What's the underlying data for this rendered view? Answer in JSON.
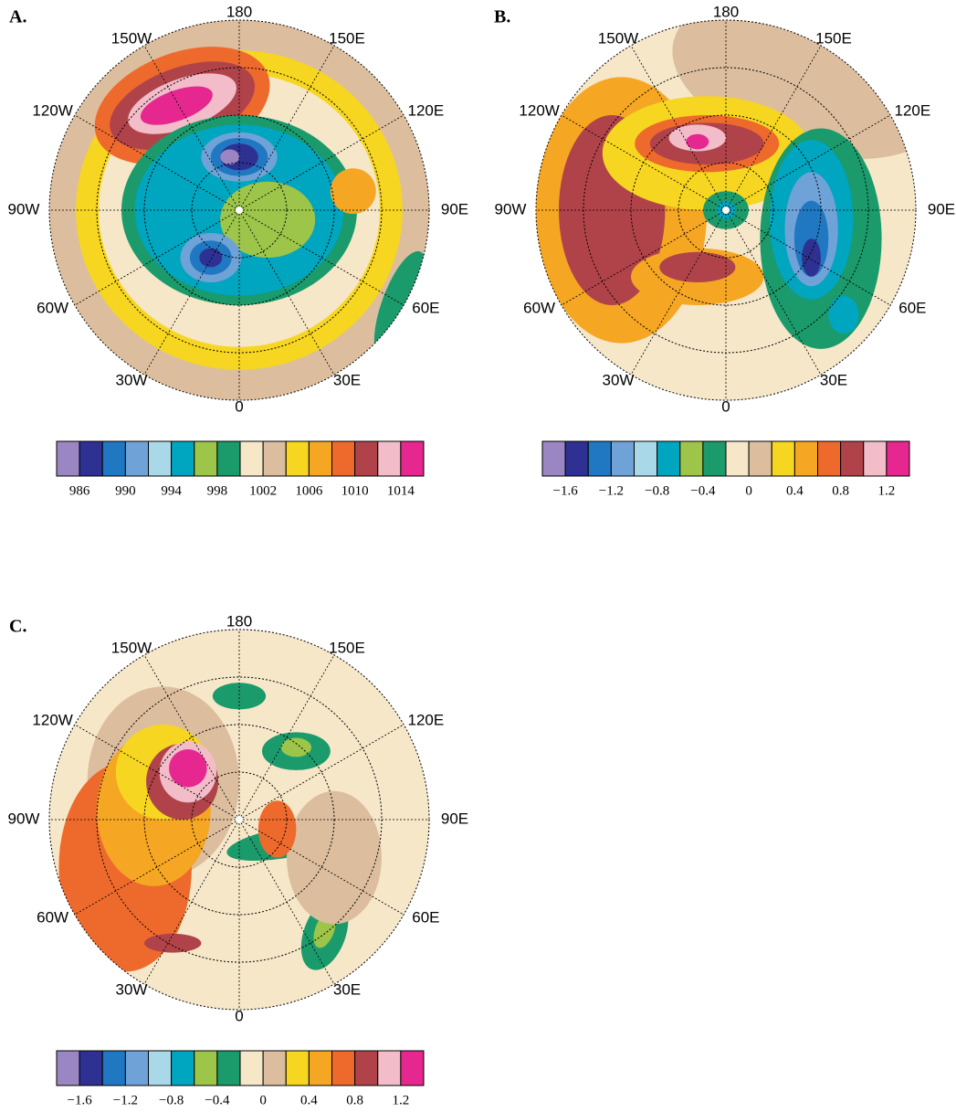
{
  "panels": [
    {
      "label": "A.",
      "lon_labels": [
        "180",
        "150E",
        "120E",
        "90E",
        "60E",
        "30E",
        "0",
        "30W",
        "60W",
        "90W",
        "120W",
        "150W"
      ],
      "colorbar": {
        "colors": [
          "#9a86c2",
          "#2e3192",
          "#1f78c1",
          "#6fa3d8",
          "#a9d9e9",
          "#00a5bf",
          "#9cc54a",
          "#1b9a6b",
          "#f6e7c9",
          "#dcbe9e",
          "#f6d620",
          "#f5a623",
          "#ee6a2c",
          "#b0434a",
          "#f2bdc8",
          "#e6278f"
        ],
        "clim": [
          984,
          1016
        ],
        "ticks": [
          986,
          990,
          994,
          998,
          1002,
          1006,
          1010,
          1014
        ]
      }
    },
    {
      "label": "B.",
      "lon_labels": [
        "180",
        "150E",
        "120E",
        "90E",
        "60E",
        "30E",
        "0",
        "30W",
        "60W",
        "90W",
        "120W",
        "150W"
      ],
      "colorbar": {
        "colors": [
          "#9a86c2",
          "#2e3192",
          "#1f78c1",
          "#6fa3d8",
          "#a9d9e9",
          "#00a5bf",
          "#9cc54a",
          "#1b9a6b",
          "#f6e7c9",
          "#dcbe9e",
          "#f6d620",
          "#f5a623",
          "#ee6a2c",
          "#b0434a",
          "#f2bdc8",
          "#e6278f"
        ],
        "clim": [
          -1.8,
          1.4
        ],
        "ticks": [
          {
            "value": -1.6,
            "label": "−1.6"
          },
          {
            "value": -1.2,
            "label": "−1.2"
          },
          {
            "value": -0.8,
            "label": "−0.8"
          },
          {
            "value": -0.4,
            "label": "−0.4"
          },
          0,
          0.4,
          0.8,
          1.2
        ]
      }
    },
    {
      "label": "C.",
      "lon_labels": [
        "180",
        "150E",
        "120E",
        "90E",
        "60E",
        "30E",
        "0",
        "30W",
        "60W",
        "90W",
        "120W",
        "150W"
      ],
      "colorbar": {
        "colors": [
          "#9a86c2",
          "#2e3192",
          "#1f78c1",
          "#6fa3d8",
          "#a9d9e9",
          "#00a5bf",
          "#9cc54a",
          "#1b9a6b",
          "#f6e7c9",
          "#dcbe9e",
          "#f6d620",
          "#f5a623",
          "#ee6a2c",
          "#b0434a",
          "#f2bdc8",
          "#e6278f"
        ],
        "clim": [
          -1.8,
          1.4
        ],
        "ticks": [
          {
            "value": -1.6,
            "label": "−1.6"
          },
          {
            "value": -1.2,
            "label": "−1.2"
          },
          {
            "value": -0.8,
            "label": "−0.8"
          },
          {
            "value": -0.4,
            "label": "−0.4"
          },
          0,
          0.4,
          0.8,
          1.2
        ]
      }
    }
  ]
}
